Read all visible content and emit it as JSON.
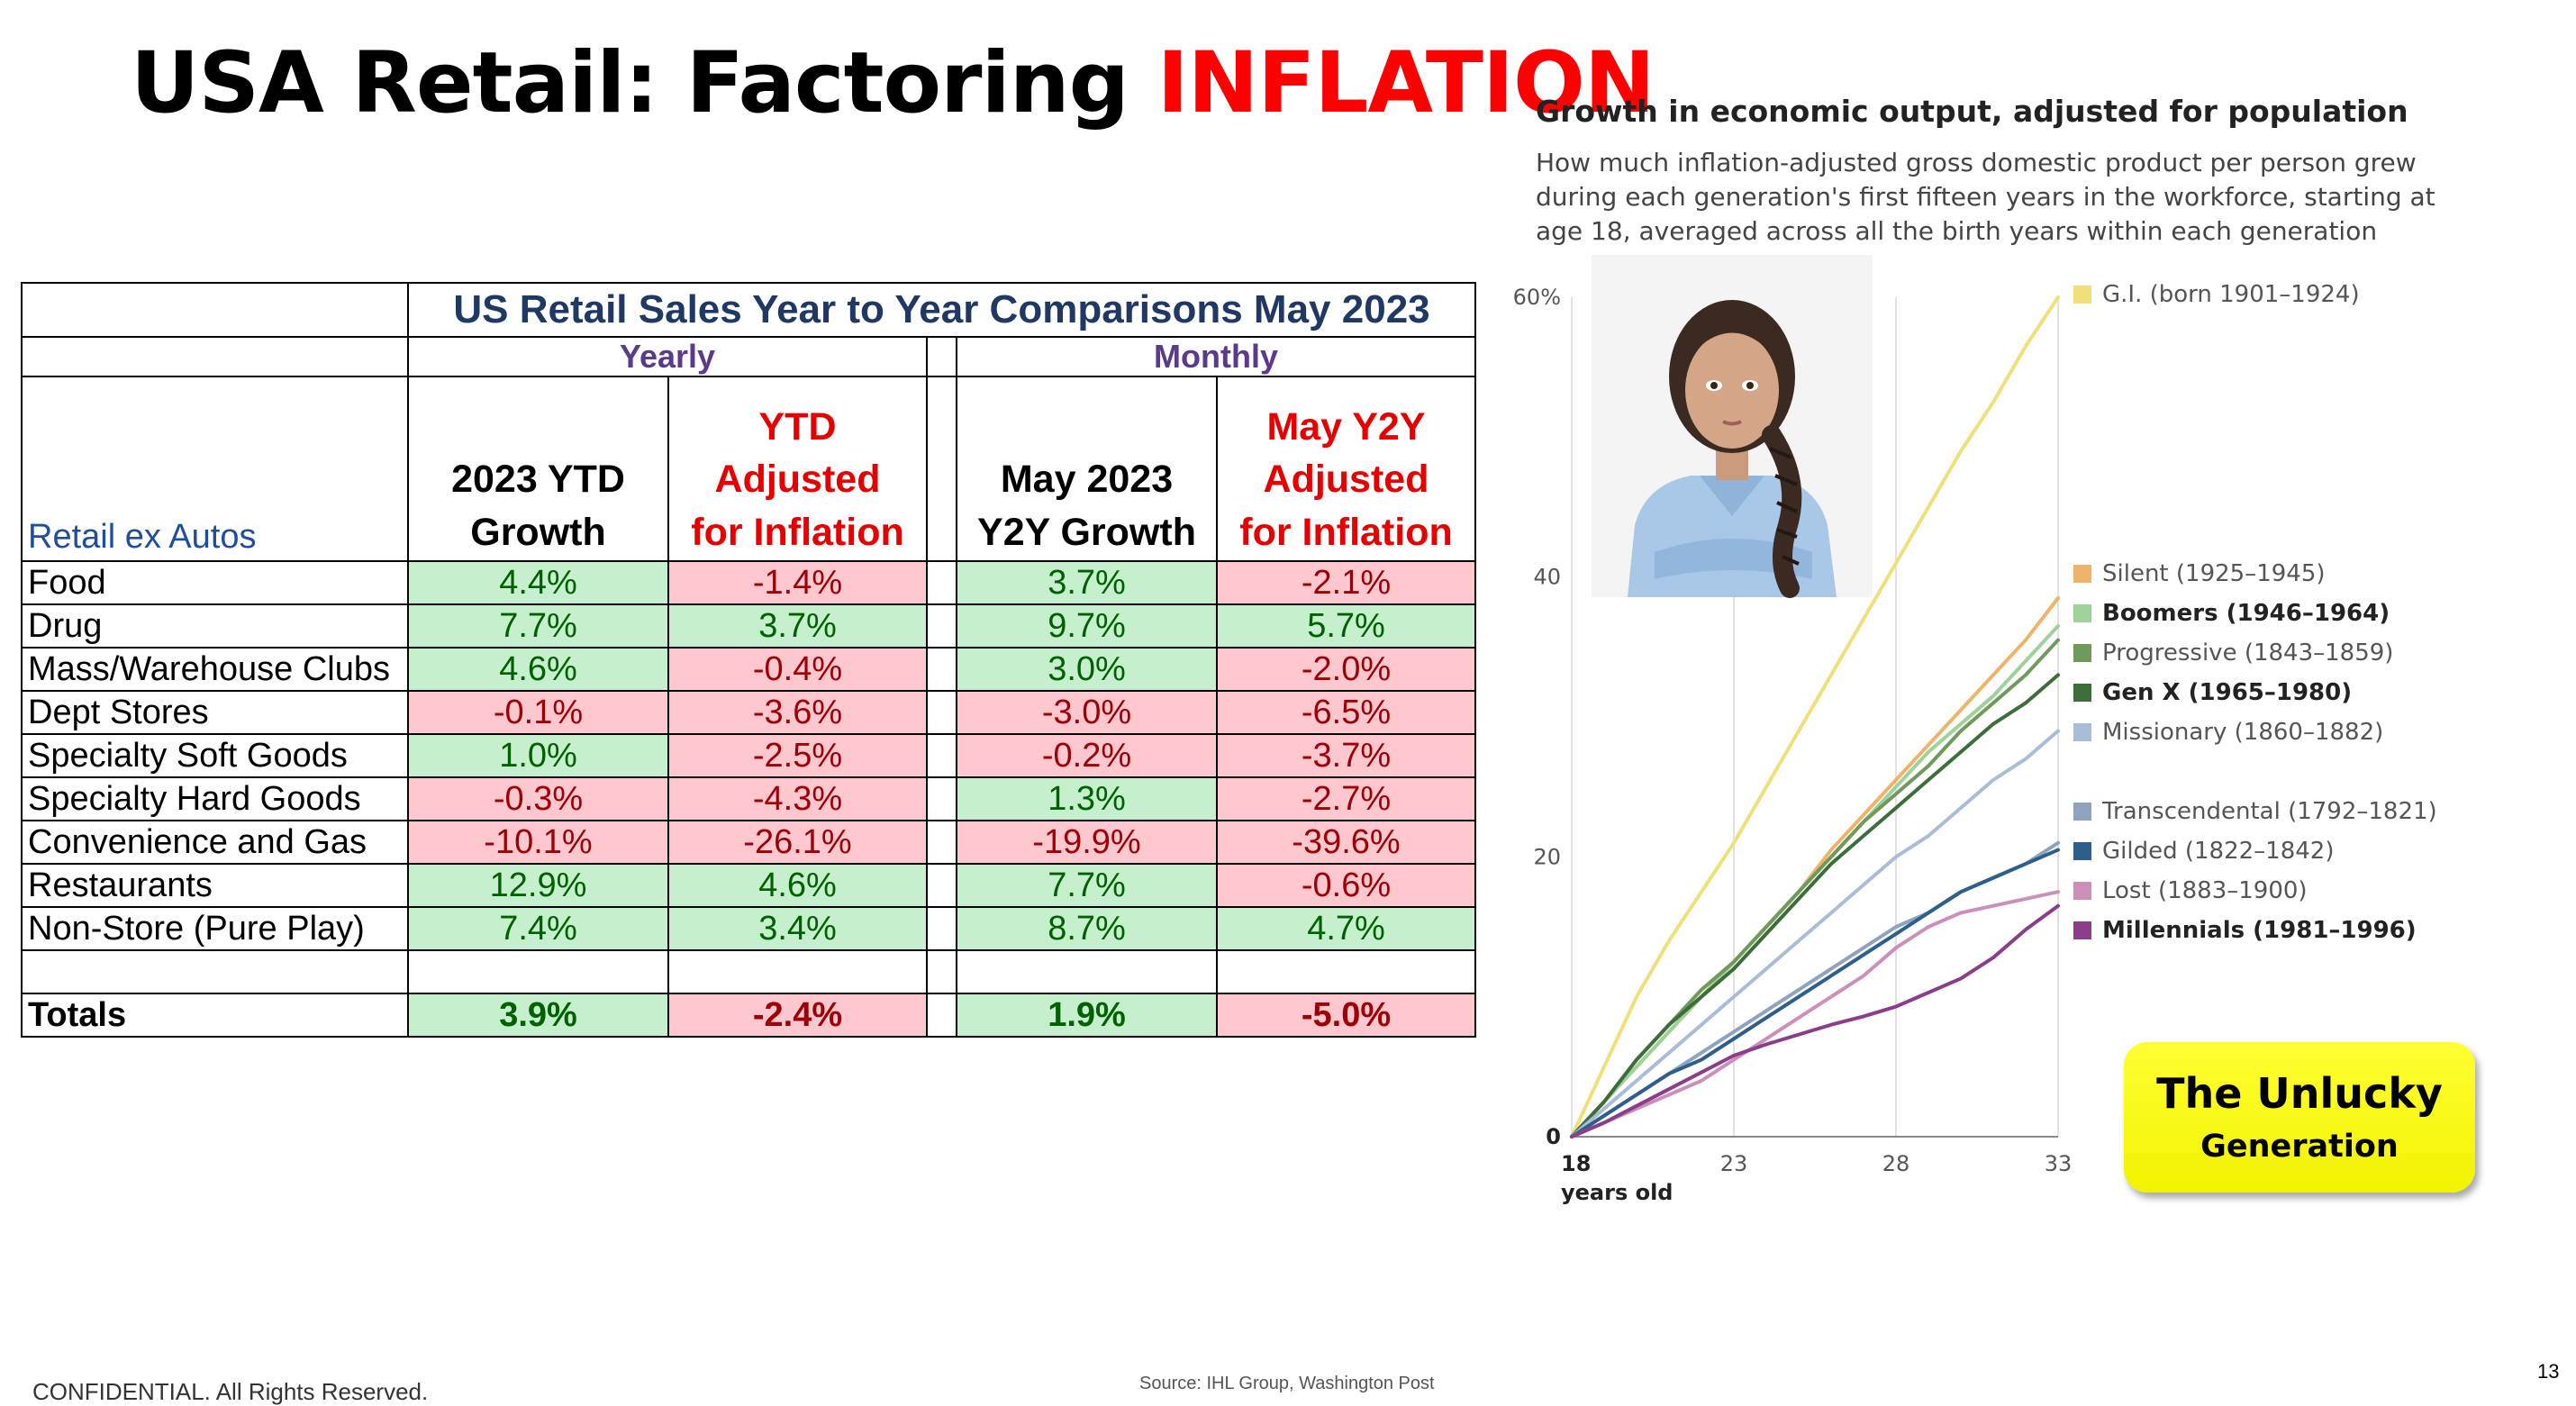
{
  "slide": {
    "title_prefix": "USA Retail: Factoring ",
    "title_accent": "INFLATION",
    "footer_left": "CONFIDENTIAL. All Rights Reserved.",
    "footer_source": "Source: IHL Group, Washington Post",
    "page_number": "13",
    "accent_color": "#ff0000"
  },
  "table": {
    "title": "US Retail Sales Year to Year Comparisons May 2023",
    "group_yearly": "Yearly",
    "group_monthly": "Monthly",
    "row_header_label": "Retail ex Autos",
    "col_ytd_growth": [
      "2023 YTD",
      "Growth"
    ],
    "col_ytd_adj": [
      "YTD",
      "Adjusted",
      "for Inflation"
    ],
    "col_may_growth": [
      "May 2023",
      "Y2Y Growth"
    ],
    "col_may_adj": [
      "May Y2Y",
      "Adjusted",
      "for Inflation"
    ],
    "rows": [
      {
        "category": "Food",
        "ytd": "4.4%",
        "ytd_adj": "-1.4%",
        "may": "3.7%",
        "may_adj": "-2.1%"
      },
      {
        "category": "Drug",
        "ytd": "7.7%",
        "ytd_adj": "3.7%",
        "may": "9.7%",
        "may_adj": "5.7%"
      },
      {
        "category": "Mass/Warehouse Clubs",
        "ytd": "4.6%",
        "ytd_adj": "-0.4%",
        "may": "3.0%",
        "may_adj": "-2.0%"
      },
      {
        "category": "Dept Stores",
        "ytd": "-0.1%",
        "ytd_adj": "-3.6%",
        "may": "-3.0%",
        "may_adj": "-6.5%"
      },
      {
        "category": "Specialty Soft Goods",
        "ytd": "1.0%",
        "ytd_adj": "-2.5%",
        "may": "-0.2%",
        "may_adj": "-3.7%"
      },
      {
        "category": "Specialty Hard Goods",
        "ytd": "-0.3%",
        "ytd_adj": "-4.3%",
        "may": "1.3%",
        "may_adj": "-2.7%"
      },
      {
        "category": "Convenience and Gas",
        "ytd": "-10.1%",
        "ytd_adj": "-26.1%",
        "may": "-19.9%",
        "may_adj": "-39.6%"
      },
      {
        "category": "Restaurants",
        "ytd": "12.9%",
        "ytd_adj": "4.6%",
        "may": "7.7%",
        "may_adj": "-0.6%"
      },
      {
        "category": "Non-Store (Pure Play)",
        "ytd": "7.4%",
        "ytd_adj": "3.4%",
        "may": "8.7%",
        "may_adj": "4.7%"
      }
    ],
    "totals": {
      "category": "Totals",
      "ytd": "3.9%",
      "ytd_adj": "-2.4%",
      "may": "1.9%",
      "may_adj": "-5.0%"
    },
    "colors": {
      "positive_bg": "#c6efce",
      "positive_text": "#006100",
      "negative_bg": "#ffc7ce",
      "negative_text": "#9c0006"
    }
  },
  "chart": {
    "title": "Growth in economic output, adjusted for population",
    "subtitle_lines": [
      "How much inflation-adjusted gross domestic product per person grew",
      "during each generation's first fifteen years in the workforce, starting at",
      "age 18, averaged across all the birth years within each generation"
    ],
    "x_tick_labels": [
      "18",
      "23",
      "28",
      "33"
    ],
    "x_axis_unit": "years old",
    "y_tick_labels": [
      "0",
      "20",
      "40",
      "60%"
    ]
  },
  "chart_data": {
    "type": "line",
    "title": "Growth in economic output, adjusted for population",
    "xlabel": "years old",
    "ylabel": "",
    "xlim": [
      18,
      33
    ],
    "ylim": [
      0,
      60
    ],
    "x": [
      18,
      19,
      20,
      21,
      22,
      23,
      24,
      25,
      26,
      27,
      28,
      29,
      30,
      31,
      32,
      33
    ],
    "series": [
      {
        "name": "G.I. (born 1901–1924)",
        "color": "#efe079",
        "bold": false,
        "values": [
          0,
          5,
          10,
          14,
          17.5,
          21,
          25,
          29,
          33,
          37,
          41,
          45,
          49,
          52.5,
          56.5,
          60
        ]
      },
      {
        "name": "Silent (1925–1945)",
        "color": "#f0b36a",
        "bold": false,
        "values": [
          0,
          2.5,
          5,
          7.5,
          10,
          12.5,
          15,
          17.5,
          20.5,
          23,
          25.5,
          28,
          30.5,
          33,
          35.5,
          38.5
        ]
      },
      {
        "name": "Boomers (1946–1964)",
        "color": "#9fd19a",
        "bold": true,
        "values": [
          0,
          2.5,
          5,
          7.5,
          10,
          12.5,
          15,
          17.5,
          20,
          22.5,
          25,
          27.5,
          29.5,
          31.5,
          34,
          36.5
        ]
      },
      {
        "name": "Progressive (1843–1859)",
        "color": "#6f9a5c",
        "bold": false,
        "values": [
          0,
          2.5,
          5.5,
          8,
          10.5,
          12.5,
          15,
          17.5,
          20,
          22.5,
          24.5,
          26.5,
          29,
          31,
          33,
          35.5
        ]
      },
      {
        "name": "Gen X (1965–1980)",
        "color": "#3d6e3a",
        "bold": true,
        "values": [
          0,
          2.5,
          5.5,
          8,
          10,
          12,
          14.5,
          17,
          19.5,
          21.5,
          23.5,
          25.5,
          27.5,
          29.5,
          31,
          33
        ]
      },
      {
        "name": "Missionary (1860–1882)",
        "color": "#aabdd8",
        "bold": false,
        "values": [
          0,
          2,
          4,
          6,
          8,
          10,
          12,
          14,
          16,
          18,
          20,
          21.5,
          23.5,
          25.5,
          27,
          29
        ]
      },
      {
        "name": "Transcendental (1792–1821)",
        "color": "#8ea3bf",
        "bold": false,
        "values": [
          0,
          1.5,
          3,
          4.5,
          6,
          7.5,
          9,
          10.5,
          12,
          13.5,
          15,
          16,
          17.5,
          18.5,
          19.5,
          21
        ]
      },
      {
        "name": "Gilded (1822–1842)",
        "color": "#2e5f8a",
        "bold": false,
        "values": [
          0,
          1.5,
          3,
          4.5,
          5.5,
          7,
          8.5,
          10,
          11.5,
          13,
          14.5,
          16,
          17.5,
          18.5,
          19.5,
          20.5
        ]
      },
      {
        "name": "Lost (1883–1900)",
        "color": "#cc8fba",
        "bold": false,
        "values": [
          0,
          1,
          2,
          3,
          4,
          5.5,
          7,
          8.5,
          10,
          11.5,
          13.5,
          15,
          16,
          16.5,
          17,
          17.5
        ]
      },
      {
        "name": "Millennials (1981–1996)",
        "color": "#8b3d8a",
        "bold": true,
        "values": [
          0,
          1,
          2.2,
          3.4,
          4.6,
          5.8,
          6.6,
          7.3,
          8,
          8.6,
          9.3,
          10.3,
          11.3,
          12.8,
          14.8,
          16.5
        ]
      }
    ],
    "legend_placement": "right",
    "grid": "vertical"
  },
  "badge": {
    "line1": "The Unlucky",
    "line2": "Generation",
    "color": "#ffff00"
  }
}
